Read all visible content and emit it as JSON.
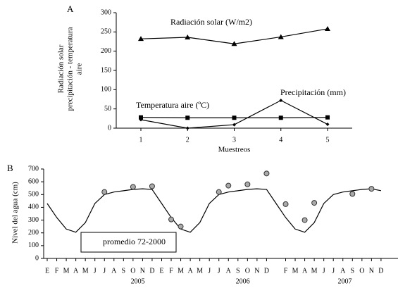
{
  "chart_data": [
    {
      "type": "line",
      "panel": "A",
      "ylabel": [
        "Radiación solar",
        "precipitación - temperatura",
        "aire"
      ],
      "xlabel": "Muestreos",
      "categories": [
        "1",
        "2",
        "3",
        "4",
        "5"
      ],
      "ylim": [
        0,
        300
      ],
      "yticks": [
        0,
        50,
        100,
        150,
        200,
        250,
        300
      ],
      "series": [
        {
          "name": "Radiación solar (W/m2)",
          "color": "#000000",
          "marker": "triangle",
          "values": [
            232,
            236,
            219,
            237,
            258
          ]
        },
        {
          "name": "Temperatura aire (ºC)",
          "color": "#000000",
          "marker": "square",
          "values": [
            28,
            27,
            27,
            27,
            28
          ]
        },
        {
          "name": "Precipitación (mm)",
          "color": "#000000",
          "marker": "diamond",
          "values": [
            22,
            0,
            9,
            72,
            10
          ]
        }
      ]
    },
    {
      "type": "line",
      "panel": "B",
      "ylabel": [
        "Nivel del agua (cm)"
      ],
      "categories": [
        "E",
        "F",
        "M",
        "A",
        "M",
        "J",
        "J",
        "A",
        "S",
        "O",
        "N",
        "D",
        "E",
        "F",
        "M",
        "A",
        "M",
        "J",
        "J",
        "A",
        "S",
        "O",
        "N",
        "D",
        null,
        "F",
        "M",
        "A",
        "M",
        "J",
        "J",
        "A",
        "S",
        "O",
        "N",
        "D"
      ],
      "years": [
        "2005",
        "2006",
        "2007"
      ],
      "ylim": [
        0,
        700
      ],
      "yticks": [
        0,
        100,
        200,
        300,
        400,
        500,
        600,
        700
      ],
      "series": [
        {
          "name": "promedio 72-2000",
          "color": "#000000",
          "marker": "none",
          "values": [
            430,
            320,
            230,
            205,
            280,
            430,
            500,
            520,
            530,
            540,
            545,
            540,
            430,
            320,
            230,
            205,
            280,
            430,
            500,
            520,
            530,
            540,
            545,
            540,
            430,
            320,
            230,
            205,
            280,
            430,
            500,
            520,
            530,
            540,
            545,
            530
          ]
        },
        {
          "color": "#aaaaaa",
          "marker": "circle",
          "values": [
            null,
            null,
            null,
            null,
            null,
            null,
            520,
            null,
            null,
            560,
            null,
            565,
            null,
            305,
            250,
            null,
            null,
            null,
            520,
            570,
            null,
            580,
            null,
            665,
            null,
            425,
            null,
            300,
            435,
            null,
            null,
            null,
            505,
            null,
            545,
            null
          ]
        }
      ]
    }
  ]
}
